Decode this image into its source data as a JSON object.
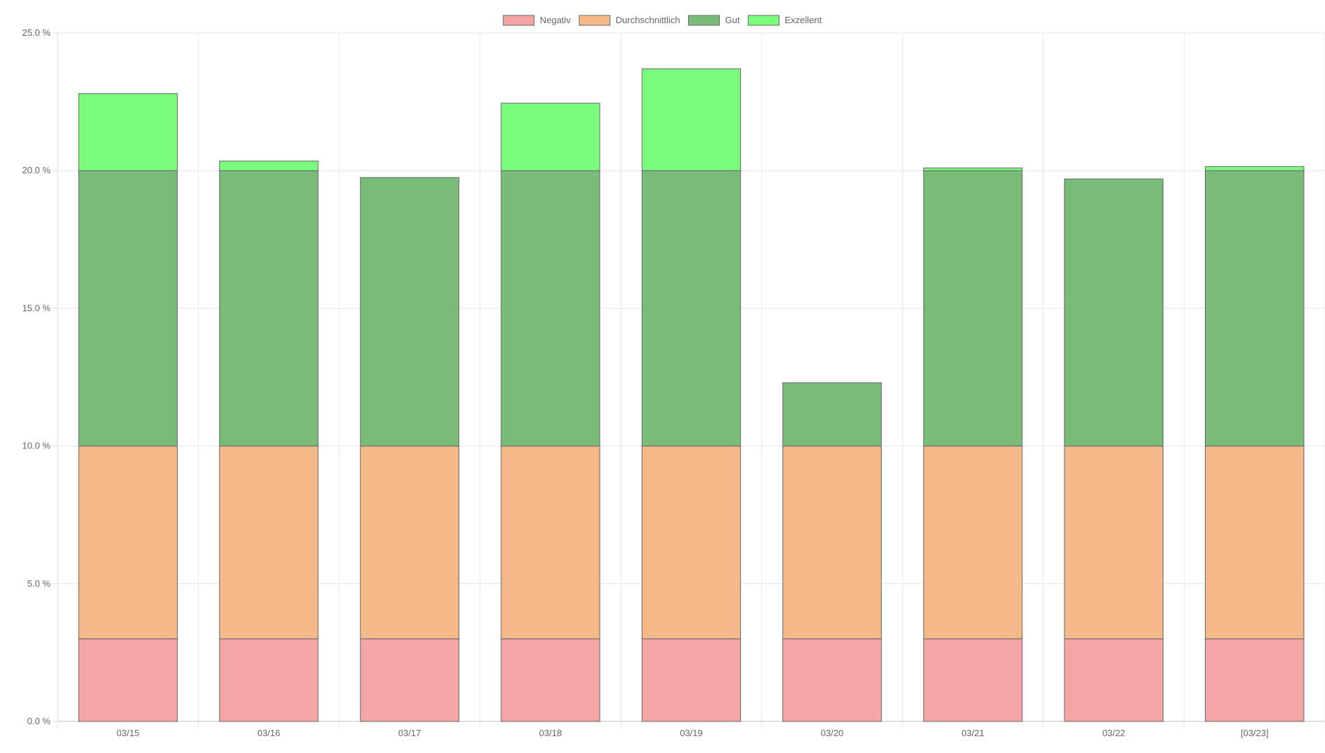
{
  "chart_data": {
    "type": "bar",
    "stacked": true,
    "title": "",
    "xlabel": "",
    "ylabel": "",
    "ylim": [
      0,
      25
    ],
    "y_ticks": [
      0,
      5,
      10,
      15,
      20,
      25
    ],
    "y_tick_labels": [
      "0.0 %",
      "5.0 %",
      "10.0 %",
      "15.0 %",
      "20.0 %",
      "25.0 %"
    ],
    "grid": true,
    "legend_position": "top-center",
    "categories": [
      "03/15",
      "03/16",
      "03/17",
      "03/18",
      "03/19",
      "03/20",
      "03/21",
      "03/22",
      "[03/23]"
    ],
    "series": [
      {
        "name": "Negativ",
        "color": "#f4a6a6",
        "values": [
          3,
          3,
          3,
          3,
          3,
          3,
          3,
          3,
          3
        ]
      },
      {
        "name": "Durchschnittlich",
        "color": "#f5b889",
        "values": [
          7,
          7,
          7,
          7,
          7,
          7,
          7,
          7,
          7
        ]
      },
      {
        "name": "Gut",
        "color": "#79bb79",
        "values": [
          10,
          10,
          9.75,
          10,
          10,
          2.3,
          10,
          9.7,
          10
        ]
      },
      {
        "name": "Exzellent",
        "color": "#7cfc7c",
        "values": [
          2.8,
          0.35,
          0,
          2.45,
          3.7,
          0,
          0.1,
          0,
          0.15
        ]
      }
    ]
  }
}
